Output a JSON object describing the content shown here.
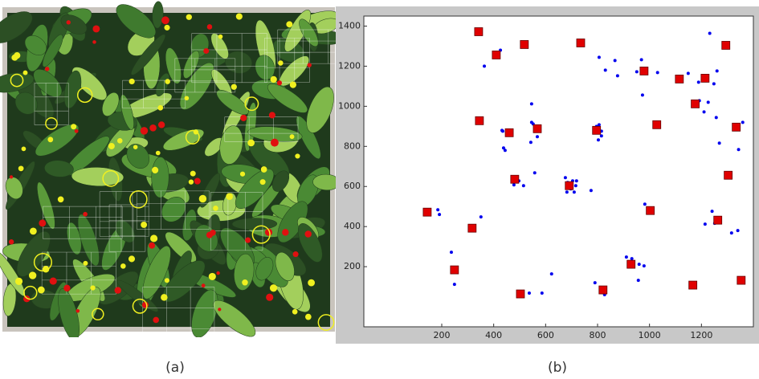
{
  "figure": {
    "panel_labels": [
      "(a)",
      "(b)"
    ]
  },
  "chart_data": {
    "type": "scatter",
    "xlim": [
      -100,
      1400
    ],
    "ylim": [
      -100,
      1450
    ],
    "xticks": [
      200,
      400,
      600,
      800,
      1000,
      1200
    ],
    "yticks": [
      200,
      400,
      600,
      800,
      1000,
      1200,
      1400
    ],
    "grid": false,
    "series": [
      {
        "color": "#0000ee",
        "marker": "dot",
        "x": [
          426,
          364,
          416,
          546,
          546,
          552,
          435,
          438,
          444,
          432,
          456,
          450,
          475,
          478,
          497,
          515,
          558,
          568,
          543,
          676,
          685,
          697,
          710,
          704,
          716,
          682,
          719,
          775,
          806,
          830,
          867,
          877,
          806,
          796,
          815,
          803,
          815,
          969,
          951,
          973,
          1031,
          1149,
          1189,
          1232,
          1260,
          1248,
          1192,
          1210,
          1226,
          1257,
          1269,
          1359,
          1343,
          1214,
          1241,
          1251,
          185,
          191,
          237,
          249,
          351,
          623,
          586,
          537,
          790,
          827,
          911,
          932,
          960,
          979,
          957,
          982,
          1316,
          1340
        ],
        "values": [
          1280,
          1200,
          1260,
          1012,
          920,
          912,
          876,
          792,
          780,
          880,
          880,
          872,
          640,
          608,
          628,
          604,
          668,
          848,
          820,
          644,
          620,
          588,
          572,
          628,
          604,
          572,
          628,
          580,
          1244,
          1180,
          1228,
          1152,
          908,
          900,
          876,
          832,
          852,
          1232,
          1172,
          1056,
          1168,
          1164,
          1120,
          1364,
          1176,
          1112,
          1028,
          972,
          1020,
          944,
          816,
          920,
          784,
          412,
          476,
          416,
          484,
          460,
          272,
          112,
          448,
          164,
          68,
          68,
          120,
          60,
          248,
          240,
          212,
          204,
          132,
          512,
          368,
          380
        ]
      },
      {
        "color": "#e00000",
        "marker": "square",
        "x": [
          342,
          410,
          518,
          735,
          979,
          1115,
          1214,
          1176,
          1294,
          345,
          460,
          568,
          796,
          1028,
          1334,
          481,
          691,
          1303,
          144,
          317,
          1003,
          1263,
          249,
          929,
          503,
          821,
          1167,
          1353
        ],
        "values": [
          1372,
          1256,
          1308,
          1316,
          1176,
          1136,
          1140,
          1012,
          1304,
          928,
          868,
          888,
          880,
          908,
          896,
          636,
          604,
          656,
          472,
          392,
          480,
          432,
          184,
          212,
          64,
          84,
          108,
          132
        ]
      }
    ]
  }
}
